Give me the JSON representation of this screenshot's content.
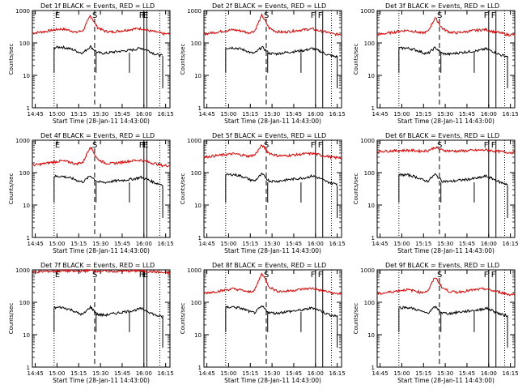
{
  "colors": {
    "events": "#000000",
    "lld": "#dd0000",
    "axis": "#000000",
    "background": "#ffffff"
  },
  "common": {
    "xlabel": "Start Time (28-Jan-11 14:43:00)",
    "ylabel": "Counts/sec",
    "x_tick_labels": [
      "14:45",
      "15:00",
      "15:15",
      "15:30",
      "15:45",
      "16:00",
      "16:15"
    ],
    "y_tick_labels": [
      "1",
      "10",
      "100",
      "1000"
    ],
    "markers": {
      "E": "E",
      "S": "S",
      "F": "F"
    }
  },
  "chart_data": [
    {
      "type": "line",
      "title": "Det 1f BLACK = Events, RED = LLD",
      "xlabel": "Start Time (28-Jan-11 14:43:00)",
      "ylabel": "Counts/sec",
      "x_minutes_from_start": [
        0,
        5,
        10,
        15,
        20,
        25,
        28,
        30,
        32,
        35,
        40,
        45,
        50,
        55,
        60,
        65,
        70,
        75,
        80,
        85,
        90
      ],
      "xlim_minutes": [
        0,
        95
      ],
      "ylim": [
        1,
        1000
      ],
      "yscale": "log",
      "e_markers_minutes": [
        15,
        76
      ],
      "s_marker_minutes": 43,
      "f_markers_minutes": [
        77,
        79
      ],
      "series": [
        {
          "name": "LLD",
          "color": "red",
          "start_minutes": 0,
          "end_minutes": 95,
          "values": [
            200,
            215,
            230,
            255,
            270,
            250,
            230,
            210,
            225,
            240,
            700,
            300,
            230,
            220,
            235,
            250,
            270,
            280,
            240,
            220,
            190
          ]
        },
        {
          "name": "Events",
          "color": "black",
          "start_minutes": 15,
          "end_minutes": 90,
          "drop_minutes": [
            44,
            67
          ],
          "values": [
            65,
            68,
            70,
            72,
            75,
            68,
            62,
            58,
            52,
            50,
            78,
            50,
            48,
            52,
            55,
            58,
            62,
            70,
            58,
            45,
            40
          ]
        }
      ]
    },
    {
      "type": "line",
      "title": "Det 2f BLACK = Events, RED = LLD",
      "xlabel": "Start Time (28-Jan-11 14:43:00)",
      "ylabel": "Counts/sec",
      "x_minutes_from_start": [
        0,
        5,
        10,
        15,
        20,
        25,
        28,
        30,
        32,
        35,
        40,
        45,
        50,
        55,
        60,
        65,
        70,
        75,
        80,
        85,
        90
      ],
      "xlim_minutes": [
        0,
        95
      ],
      "ylim": [
        1,
        1000
      ],
      "yscale": "log",
      "e_markers_minutes": [],
      "s_marker_minutes": 43,
      "f_markers_minutes": [
        77,
        82
      ],
      "series": [
        {
          "name": "LLD",
          "color": "red",
          "start_minutes": 0,
          "end_minutes": 95,
          "values": [
            190,
            205,
            220,
            240,
            255,
            240,
            225,
            205,
            215,
            235,
            720,
            290,
            225,
            215,
            230,
            245,
            260,
            270,
            235,
            215,
            185
          ]
        },
        {
          "name": "Events",
          "color": "black",
          "start_minutes": 15,
          "end_minutes": 92,
          "drop_minutes": [
            44,
            67
          ],
          "values": [
            62,
            66,
            68,
            70,
            72,
            66,
            60,
            56,
            50,
            48,
            75,
            48,
            46,
            50,
            53,
            56,
            60,
            68,
            56,
            44,
            38
          ]
        }
      ]
    },
    {
      "type": "line",
      "title": "Det 3f BLACK = Events, RED = LLD",
      "xlabel": "Start Time (28-Jan-11 14:43:00)",
      "ylabel": "Counts/sec",
      "x_minutes_from_start": [
        0,
        5,
        10,
        15,
        20,
        25,
        28,
        30,
        32,
        35,
        40,
        45,
        50,
        55,
        60,
        65,
        70,
        75,
        80,
        85,
        90
      ],
      "xlim_minutes": [
        0,
        95
      ],
      "ylim": [
        1,
        1000
      ],
      "yscale": "log",
      "e_markers_minutes": [],
      "s_marker_minutes": 43,
      "f_markers_minutes": [
        77,
        82
      ],
      "series": [
        {
          "name": "LLD",
          "color": "red",
          "start_minutes": 0,
          "end_minutes": 95,
          "values": [
            180,
            195,
            210,
            230,
            245,
            230,
            215,
            200,
            210,
            225,
            600,
            280,
            215,
            205,
            220,
            235,
            250,
            260,
            225,
            205,
            180
          ]
        },
        {
          "name": "Events",
          "color": "black",
          "start_minutes": 15,
          "end_minutes": 90,
          "drop_minutes": [
            44,
            67
          ],
          "values": [
            60,
            63,
            66,
            68,
            70,
            64,
            58,
            54,
            49,
            47,
            72,
            47,
            45,
            49,
            52,
            55,
            58,
            66,
            55,
            43,
            38
          ]
        }
      ]
    },
    {
      "type": "line",
      "title": "Det 4f BLACK = Events, RED = LLD",
      "xlabel": "Start Time (28-Jan-11 14:43:00)",
      "ylabel": "Counts/sec",
      "x_minutes_from_start": [
        0,
        5,
        10,
        15,
        20,
        25,
        28,
        30,
        32,
        35,
        40,
        45,
        50,
        55,
        60,
        65,
        70,
        75,
        80,
        85,
        90
      ],
      "xlim_minutes": [
        0,
        95
      ],
      "ylim": [
        1,
        1000
      ],
      "yscale": "log",
      "e_markers_minutes": [
        15,
        76
      ],
      "s_marker_minutes": 43,
      "f_markers_minutes": [
        77,
        79
      ],
      "series": [
        {
          "name": "LLD",
          "color": "red",
          "start_minutes": 0,
          "end_minutes": 95,
          "values": [
            170,
            180,
            195,
            215,
            230,
            215,
            200,
            185,
            195,
            210,
            650,
            260,
            200,
            190,
            205,
            220,
            235,
            245,
            210,
            190,
            165
          ]
        },
        {
          "name": "Events",
          "color": "black",
          "start_minutes": 15,
          "end_minutes": 90,
          "drop_minutes": [
            44,
            67
          ],
          "values": [
            68,
            72,
            74,
            76,
            78,
            70,
            65,
            60,
            55,
            52,
            80,
            52,
            50,
            54,
            57,
            60,
            64,
            72,
            60,
            48,
            42
          ]
        }
      ]
    },
    {
      "type": "line",
      "title": "Det 5f BLACK = Events, RED = LLD",
      "xlabel": "Start Time (28-Jan-11 14:43:00)",
      "ylabel": "Counts/sec",
      "x_minutes_from_start": [
        0,
        5,
        10,
        15,
        20,
        25,
        28,
        30,
        32,
        35,
        40,
        45,
        50,
        55,
        60,
        65,
        70,
        75,
        80,
        85,
        90
      ],
      "xlim_minutes": [
        0,
        95
      ],
      "ylim": [
        1,
        1000
      ],
      "yscale": "log",
      "e_markers_minutes": [],
      "s_marker_minutes": 43,
      "f_markers_minutes": [
        77,
        82
      ],
      "series": [
        {
          "name": "LLD",
          "color": "red",
          "start_minutes": 0,
          "end_minutes": 95,
          "values": [
            300,
            320,
            340,
            360,
            380,
            360,
            340,
            320,
            330,
            350,
            700,
            400,
            340,
            330,
            345,
            360,
            380,
            390,
            350,
            320,
            290
          ]
        },
        {
          "name": "Events",
          "color": "black",
          "start_minutes": 15,
          "end_minutes": 92,
          "drop_minutes": [
            44,
            67
          ],
          "values": [
            75,
            80,
            82,
            85,
            88,
            80,
            72,
            66,
            60,
            56,
            90,
            56,
            54,
            58,
            62,
            66,
            70,
            80,
            66,
            52,
            46
          ]
        }
      ]
    },
    {
      "type": "line",
      "title": "Det 6f BLACK = Events, RED = LLD",
      "xlabel": "Start Time (28-Jan-11 14:43:00)",
      "ylabel": "Counts/sec",
      "x_minutes_from_start": [
        0,
        5,
        10,
        15,
        20,
        25,
        28,
        30,
        32,
        35,
        40,
        45,
        50,
        55,
        60,
        65,
        70,
        75,
        80,
        85,
        90
      ],
      "xlim_minutes": [
        0,
        95
      ],
      "ylim": [
        1,
        1000
      ],
      "yscale": "log",
      "e_markers_minutes": [],
      "s_marker_minutes": 43,
      "f_markers_minutes": [
        77,
        82
      ],
      "series": [
        {
          "name": "LLD",
          "color": "red",
          "start_minutes": 0,
          "end_minutes": 95,
          "values": [
            450,
            460,
            470,
            480,
            490,
            480,
            470,
            460,
            470,
            480,
            600,
            490,
            470,
            460,
            470,
            480,
            490,
            500,
            470,
            450,
            420
          ]
        },
        {
          "name": "Events",
          "color": "black",
          "start_minutes": 15,
          "end_minutes": 90,
          "drop_minutes": [
            44,
            67
          ],
          "values": [
            75,
            80,
            82,
            84,
            86,
            78,
            70,
            64,
            58,
            55,
            88,
            55,
            53,
            57,
            60,
            64,
            68,
            78,
            64,
            50,
            44
          ]
        }
      ]
    },
    {
      "type": "line",
      "title": "Det 7f BLACK = Events, RED = LLD",
      "xlabel": "Start Time (28-Jan-11 14:43:00)",
      "ylabel": "Counts/sec",
      "x_minutes_from_start": [
        0,
        5,
        10,
        15,
        20,
        25,
        28,
        30,
        32,
        35,
        40,
        45,
        50,
        55,
        60,
        65,
        70,
        75,
        80,
        85,
        90
      ],
      "xlim_minutes": [
        0,
        95
      ],
      "ylim": [
        1,
        1000
      ],
      "yscale": "log",
      "e_markers_minutes": [
        15,
        76
      ],
      "s_marker_minutes": 43,
      "f_markers_minutes": [
        77,
        79
      ],
      "series": [
        {
          "name": "LLD",
          "color": "red",
          "start_minutes": 0,
          "end_minutes": 95,
          "values": [
            850,
            880,
            900,
            920,
            930,
            920,
            910,
            900,
            910,
            920,
            950,
            930,
            910,
            900,
            910,
            920,
            930,
            940,
            900,
            870,
            820
          ]
        },
        {
          "name": "Events",
          "color": "black",
          "start_minutes": 15,
          "end_minutes": 90,
          "drop_minutes": [
            44,
            67
          ],
          "values": [
            60,
            64,
            66,
            68,
            70,
            62,
            56,
            50,
            45,
            42,
            72,
            42,
            40,
            44,
            48,
            52,
            56,
            64,
            52,
            40,
            35
          ]
        }
      ]
    },
    {
      "type": "line",
      "title": "Det 8f BLACK = Events, RED = LLD",
      "xlabel": "Start Time (28-Jan-11 14:43:00)",
      "ylabel": "Counts/sec",
      "x_minutes_from_start": [
        0,
        5,
        10,
        15,
        20,
        25,
        28,
        30,
        32,
        35,
        40,
        45,
        50,
        55,
        60,
        65,
        70,
        75,
        80,
        85,
        90
      ],
      "xlim_minutes": [
        0,
        95
      ],
      "ylim": [
        1,
        1000
      ],
      "yscale": "log",
      "e_markers_minutes": [],
      "s_marker_minutes": 43,
      "f_markers_minutes": [
        77,
        82
      ],
      "series": [
        {
          "name": "LLD",
          "color": "red",
          "start_minutes": 0,
          "end_minutes": 95,
          "values": [
            190,
            205,
            220,
            240,
            260,
            240,
            225,
            205,
            215,
            235,
            800,
            300,
            225,
            215,
            230,
            245,
            260,
            270,
            235,
            215,
            185
          ]
        },
        {
          "name": "Events",
          "color": "black",
          "start_minutes": 15,
          "end_minutes": 92,
          "drop_minutes": [
            44,
            67
          ],
          "values": [
            62,
            66,
            68,
            70,
            72,
            66,
            60,
            56,
            50,
            48,
            75,
            48,
            46,
            50,
            53,
            56,
            60,
            68,
            56,
            44,
            38
          ]
        }
      ]
    },
    {
      "type": "line",
      "title": "Det 9f BLACK = Events, RED = LLD",
      "xlabel": "Start Time (28-Jan-11 14:43:00)",
      "ylabel": "Counts/sec",
      "x_minutes_from_start": [
        0,
        5,
        10,
        15,
        20,
        25,
        28,
        30,
        32,
        35,
        40,
        45,
        50,
        55,
        60,
        65,
        70,
        75,
        80,
        85,
        90
      ],
      "xlim_minutes": [
        0,
        95
      ],
      "ylim": [
        1,
        1000
      ],
      "yscale": "log",
      "e_markers_minutes": [],
      "s_marker_minutes": 43,
      "f_markers_minutes": [
        77,
        82
      ],
      "series": [
        {
          "name": "LLD",
          "color": "red",
          "start_minutes": 0,
          "end_minutes": 95,
          "values": [
            180,
            195,
            210,
            230,
            245,
            230,
            215,
            200,
            210,
            225,
            600,
            280,
            215,
            205,
            220,
            235,
            250,
            260,
            225,
            205,
            175
          ]
        },
        {
          "name": "Events",
          "color": "black",
          "start_minutes": 15,
          "end_minutes": 90,
          "drop_minutes": [
            44,
            67
          ],
          "values": [
            60,
            63,
            66,
            68,
            70,
            64,
            58,
            54,
            49,
            47,
            72,
            47,
            45,
            49,
            52,
            55,
            58,
            66,
            55,
            43,
            38
          ]
        }
      ]
    }
  ]
}
